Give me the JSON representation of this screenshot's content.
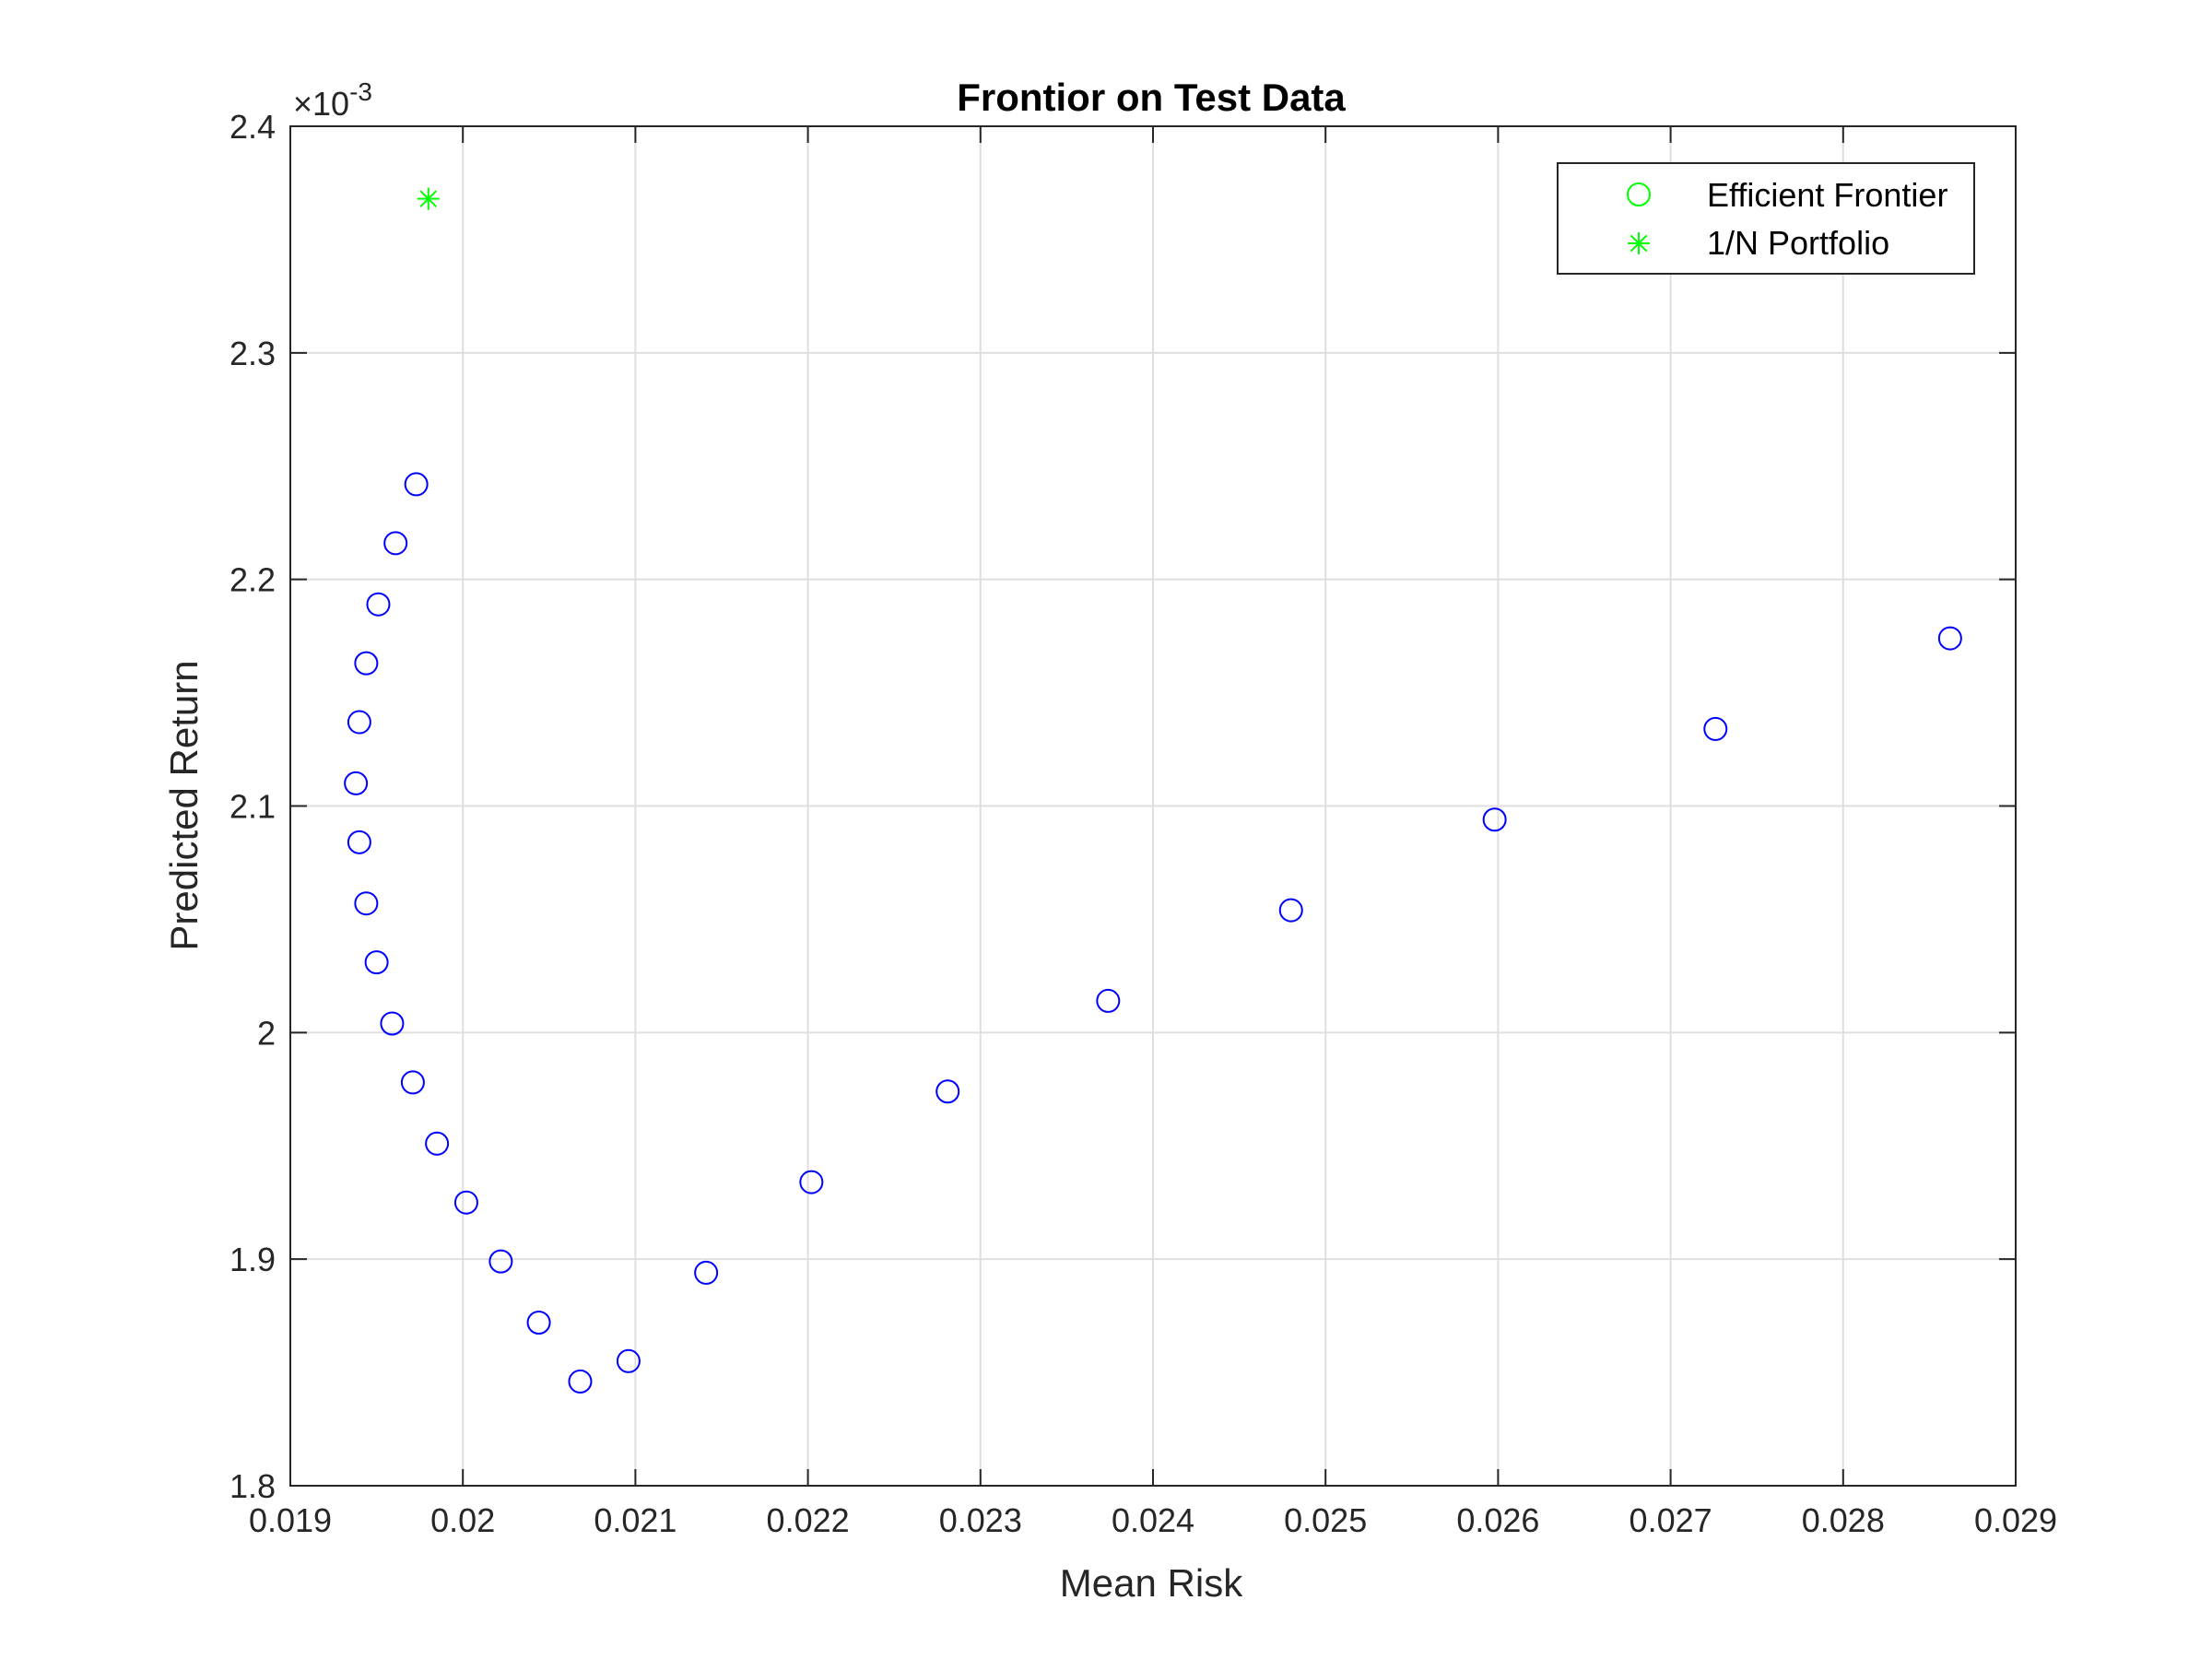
{
  "chart_data": {
    "type": "scatter",
    "title": "Frontior on Test Data",
    "xlabel": "Mean Risk",
    "ylabel": "Predicted Return",
    "xlim": [
      0.019,
      0.029
    ],
    "ylim": [
      1.8,
      2.4
    ],
    "y_exponent_base": "×10",
    "y_exponent_power": "-3",
    "x_ticks": [
      0.019,
      0.02,
      0.021,
      0.022,
      0.023,
      0.024,
      0.025,
      0.026,
      0.027,
      0.028,
      0.029
    ],
    "x_tick_labels": [
      "0.019",
      "0.02",
      "0.021",
      "0.022",
      "0.023",
      "0.024",
      "0.025",
      "0.026",
      "0.027",
      "0.028",
      "0.029"
    ],
    "y_ticks": [
      1.8,
      1.9,
      2.0,
      2.1,
      2.2,
      2.3,
      2.4
    ],
    "y_tick_labels": [
      "1.8",
      "1.9",
      "2",
      "2.1",
      "2.2",
      "2.3",
      "2.4"
    ],
    "grid": true,
    "legend_position": "top-right",
    "series": [
      {
        "name": "Efficient Frontier",
        "marker": "circle",
        "legend_color": "#00ff00",
        "color": "#0000ff",
        "x": [
          0.01973,
          0.01961,
          0.01951,
          0.01944,
          0.0194,
          0.01938,
          0.0194,
          0.01944,
          0.0195,
          0.01959,
          0.01971,
          0.01985,
          0.02002,
          0.02022,
          0.02044,
          0.02068,
          0.02096,
          0.02141,
          0.02202,
          0.02281,
          0.02374,
          0.0248,
          0.02598,
          0.02726,
          0.02862
        ],
        "y": [
          2.242,
          2.216,
          2.189,
          2.163,
          2.137,
          2.11,
          2.084,
          2.057,
          2.031,
          2.004,
          1.978,
          1.951,
          1.925,
          1.899,
          1.872,
          1.846,
          1.855,
          1.894,
          1.934,
          1.974,
          2.014,
          2.054,
          2.094,
          2.134,
          2.174
        ]
      },
      {
        "name": "1/N Portfolio",
        "marker": "asterisk",
        "color": "#00ff00",
        "x": [
          0.0198
        ],
        "y": [
          2.368
        ]
      }
    ]
  }
}
